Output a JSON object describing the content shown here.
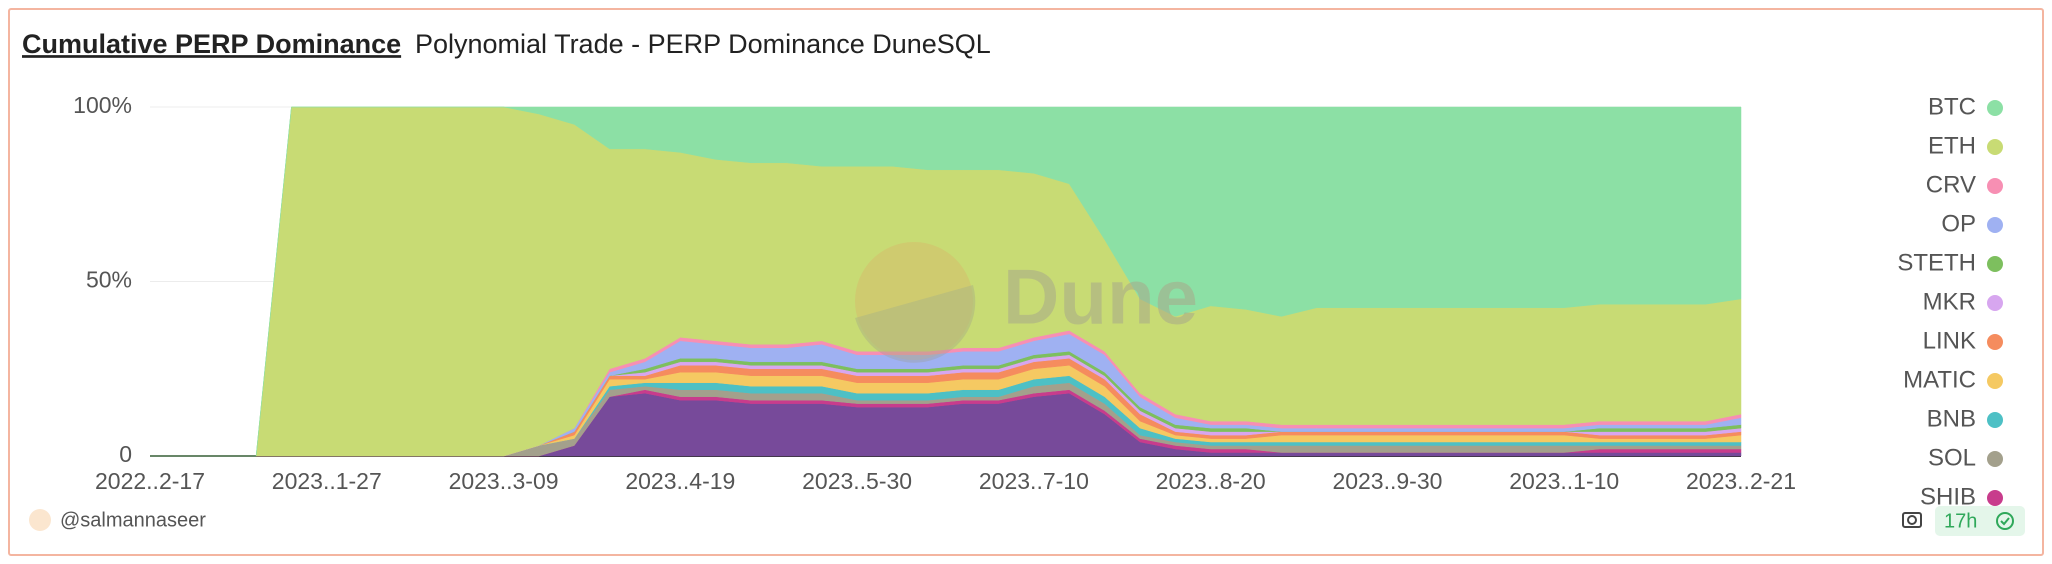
{
  "chart_data": {
    "type": "stacked_area",
    "title": "Cumulative PERP Dominance",
    "subtitle": "Polynomial Trade - PERP Dominance DuneSQL",
    "watermark": "Dune",
    "categories": [
      "2022..2-17",
      null,
      null,
      null,
      null,
      "2023..1-27",
      null,
      null,
      null,
      null,
      "2023..3-09",
      null,
      null,
      null,
      null,
      "2023..4-19",
      null,
      null,
      null,
      null,
      "2023..5-30",
      null,
      null,
      null,
      null,
      "2023..7-10",
      null,
      null,
      null,
      null,
      "2023..8-20",
      null,
      null,
      null,
      null,
      "2023..9-30",
      null,
      null,
      null,
      null,
      "2023..1-10",
      null,
      null,
      null,
      null,
      "2023..2-21"
    ],
    "ylim": [
      0,
      100
    ],
    "yticks": [
      0,
      {
        "value": 50,
        "label": "50%"
      },
      {
        "value": 100,
        "label": "100%"
      }
    ],
    "grid": true,
    "series": [
      {
        "name": "BTC",
        "color": "#8ce0a5",
        "values": [
          0,
          0,
          0,
          0,
          0,
          0,
          0,
          0,
          0,
          0,
          0,
          2,
          5,
          12,
          12,
          13,
          15,
          16,
          16,
          17,
          17,
          17,
          18,
          18,
          18,
          19,
          22,
          38,
          55,
          60,
          57,
          58,
          60,
          57.5,
          57.5,
          57.5,
          57.5,
          57.5,
          57.5,
          57.5,
          57.5,
          56.5,
          56.5,
          56.5,
          56.5,
          55
        ]
      },
      {
        "name": "ETH",
        "color": "#c8db74",
        "values": [
          0,
          0,
          0,
          0,
          100,
          100,
          100,
          100,
          100,
          100,
          100,
          95,
          87,
          63,
          60,
          53,
          52,
          52,
          52,
          50,
          53,
          53,
          52,
          51,
          51,
          47,
          42,
          32,
          27,
          28,
          33,
          32,
          31,
          33.5,
          33.5,
          33.5,
          33.5,
          33.5,
          33.5,
          33.5,
          33.5,
          33.5,
          33.5,
          33.5,
          33.5,
          33
        ]
      },
      {
        "name": "CRV",
        "color": "#f78fb3",
        "values": [
          0,
          0,
          0,
          0,
          0,
          0,
          0,
          0,
          0,
          0,
          0,
          0,
          0,
          1,
          1,
          1,
          1,
          1,
          1,
          1,
          1,
          1,
          1,
          1,
          1,
          1,
          1,
          1,
          1,
          1,
          1,
          1,
          1,
          1,
          1,
          1,
          1,
          1,
          1,
          1,
          1,
          1,
          1,
          1,
          1,
          1
        ]
      },
      {
        "name": "OP",
        "color": "#9fb1f2",
        "values": [
          0,
          0,
          0,
          0,
          0,
          0,
          0,
          0,
          0,
          0,
          0,
          0,
          1,
          1,
          2,
          5,
          4,
          4,
          4,
          5,
          4,
          4,
          4,
          4,
          4,
          4,
          5,
          5,
          3,
          2,
          1,
          1,
          1,
          1,
          1,
          1,
          1,
          1,
          1,
          1,
          1,
          1,
          1,
          1,
          1,
          2
        ]
      },
      {
        "name": "STETH",
        "color": "#7dbf5e",
        "values": [
          0,
          0,
          0,
          0,
          0,
          0,
          0,
          0,
          0,
          0,
          0,
          0,
          0,
          0,
          1,
          1,
          1,
          1,
          1,
          1,
          1,
          1,
          1,
          1,
          1,
          1,
          1,
          1,
          1,
          1,
          1,
          1,
          0,
          0,
          0,
          0,
          0,
          0,
          0,
          0,
          0,
          1,
          1,
          1,
          1,
          1
        ]
      },
      {
        "name": "MKR",
        "color": "#d7a6ef",
        "values": [
          0,
          0,
          0,
          0,
          0,
          0,
          0,
          0,
          0,
          0,
          0,
          0,
          0,
          0,
          1,
          1,
          1,
          1,
          1,
          1,
          1,
          1,
          1,
          1,
          1,
          1,
          1,
          1,
          1,
          1,
          1,
          1,
          0,
          0,
          0,
          0,
          0,
          0,
          0,
          0,
          0,
          1,
          1,
          1,
          1,
          1
        ]
      },
      {
        "name": "LINK",
        "color": "#f58c5e",
        "values": [
          0,
          0,
          0,
          0,
          0,
          0,
          0,
          0,
          0,
          0,
          0,
          0,
          1,
          1,
          1,
          2,
          2,
          2,
          2,
          2,
          2,
          2,
          2,
          2,
          2,
          2,
          2,
          2,
          2,
          1,
          1,
          1,
          1,
          1,
          1,
          1,
          1,
          1,
          1,
          1,
          1,
          1,
          1,
          1,
          1,
          1
        ]
      },
      {
        "name": "MATIC",
        "color": "#f5c962",
        "values": [
          0,
          0,
          0,
          0,
          0,
          0,
          0,
          0,
          0,
          0,
          0,
          0,
          1,
          2,
          1,
          3,
          3,
          3,
          3,
          3,
          3,
          3,
          3,
          3,
          3,
          3,
          3,
          3,
          2,
          1,
          1,
          1,
          2,
          2,
          2,
          2,
          2,
          2,
          2,
          2,
          2,
          1,
          1,
          1,
          1,
          2
        ]
      },
      {
        "name": "BNB",
        "color": "#4dc0c5",
        "values": [
          0,
          0,
          0,
          0,
          0,
          0,
          0,
          0,
          0,
          0,
          0,
          0,
          0,
          1,
          1,
          2,
          2,
          2,
          2,
          2,
          2,
          2,
          2,
          2,
          2,
          2,
          2,
          2,
          2,
          1,
          1,
          1,
          1,
          1,
          1,
          1,
          1,
          1,
          1,
          1,
          1,
          1,
          1,
          1,
          1,
          1
        ]
      },
      {
        "name": "SOL",
        "color": "#a3a08c",
        "values": [
          0,
          0,
          0,
          0,
          0,
          0,
          0,
          0,
          0,
          0,
          0,
          3,
          2,
          2,
          1,
          2,
          2,
          2,
          2,
          2,
          1,
          1,
          1,
          1,
          1,
          2,
          2,
          2,
          1,
          1,
          1,
          1,
          2,
          2,
          2,
          2,
          2,
          2,
          2,
          2,
          2,
          1,
          1,
          1,
          1,
          1
        ]
      },
      {
        "name": "SHIB",
        "color": "#c83c8c",
        "values": [
          0,
          0,
          0,
          0,
          0,
          0,
          0,
          0,
          0,
          0,
          0,
          0,
          0,
          0,
          1,
          1,
          1,
          1,
          1,
          1,
          1,
          1,
          1,
          1,
          1,
          1,
          1,
          1,
          1,
          1,
          1,
          1,
          0,
          0,
          0,
          0,
          0,
          0,
          0,
          0,
          0,
          1,
          1,
          1,
          1,
          1
        ]
      },
      {
        "color": "#774a9a",
        "values": [
          0,
          0,
          0,
          0,
          0,
          0,
          0,
          0,
          0,
          0,
          0,
          0,
          3,
          17,
          18,
          16,
          16,
          15,
          15,
          15,
          14,
          14,
          14,
          15,
          15,
          17,
          18,
          12,
          4,
          2,
          1,
          1,
          1,
          1,
          1,
          1,
          1,
          1,
          1,
          1,
          1,
          1,
          1,
          1,
          1,
          1
        ]
      }
    ]
  },
  "footer": {
    "author": "@salmannaseer",
    "age": "17h"
  }
}
